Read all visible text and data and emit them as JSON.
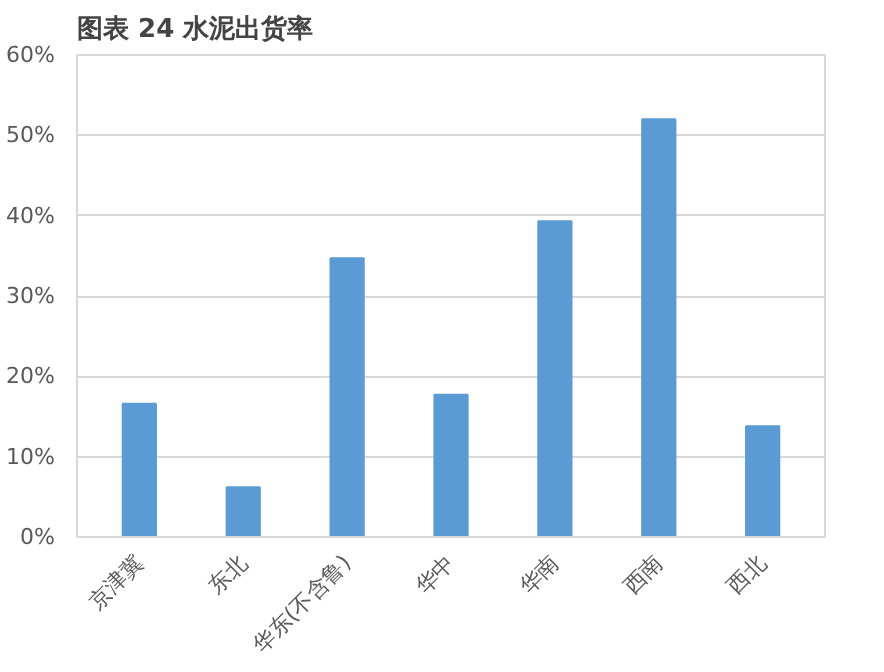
{
  "chart_data": {
    "type": "bar",
    "title": "图表 24    水泥出货率",
    "categories": [
      "京津冀",
      "东北",
      "华东(不含鲁)",
      "华中",
      "华南",
      "西南",
      "西北"
    ],
    "values": [
      16.6,
      6.2,
      34.7,
      17.7,
      39.3,
      52.0,
      13.8
    ],
    "color": "#5b9bd5",
    "ylim": [
      0,
      60
    ],
    "yticks": [
      {
        "value": 0,
        "label": "0%"
      },
      {
        "value": 10,
        "label": "10%"
      },
      {
        "value": 20,
        "label": "20%"
      },
      {
        "value": 30,
        "label": "30%"
      },
      {
        "value": 40,
        "label": "40%"
      },
      {
        "value": 50,
        "label": "50%"
      },
      {
        "value": 60,
        "label": "60%"
      }
    ],
    "grid": "y"
  }
}
